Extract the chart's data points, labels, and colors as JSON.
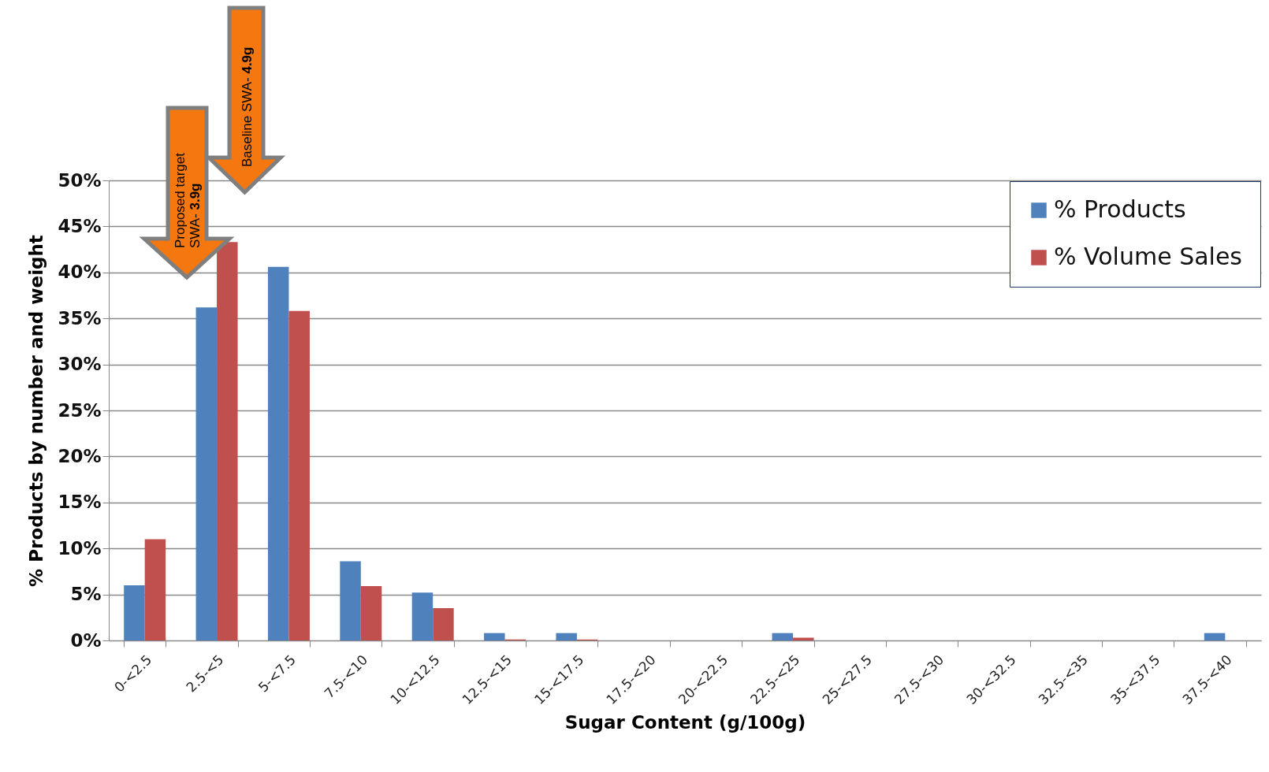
{
  "chart_data": {
    "type": "bar",
    "xlabel": "Sugar Content (g/100g)",
    "ylabel": "% Products by number and weight",
    "categories": [
      "0-<2.5",
      "2.5-<5",
      "5-<7.5",
      "7.5-<10",
      "10-<12.5",
      "12.5-<15",
      "15-<17.5",
      "17.5-<20",
      "20-<22.5",
      "22.5-<25",
      "25-<27.5",
      "27.5-<30",
      "30-<32.5",
      "32.5-<35",
      "35-<37.5",
      "37.5-<40"
    ],
    "series": [
      {
        "name": "% Products",
        "color": "#4f81bd",
        "values": [
          6.0,
          36.2,
          40.6,
          8.6,
          5.2,
          0.8,
          0.8,
          0,
          0,
          0.8,
          0,
          0,
          0,
          0,
          0,
          0.8
        ]
      },
      {
        "name": "% Volume Sales",
        "color": "#c0504d",
        "values": [
          11.0,
          43.3,
          35.8,
          5.9,
          3.5,
          0.1,
          0.1,
          0,
          0,
          0.3,
          0,
          0,
          0,
          0,
          0,
          0
        ]
      }
    ],
    "ylim": [
      0,
      50
    ],
    "yticks": [
      {
        "value": 0,
        "label": "0%"
      },
      {
        "value": 5,
        "label": "5%"
      },
      {
        "value": 10,
        "label": "10%"
      },
      {
        "value": 15,
        "label": "15%"
      },
      {
        "value": 20,
        "label": "20%"
      },
      {
        "value": 25,
        "label": "25%"
      },
      {
        "value": 30,
        "label": "30%"
      },
      {
        "value": 35,
        "label": "35%"
      },
      {
        "value": 40,
        "label": "40%"
      },
      {
        "value": 45,
        "label": "45%"
      },
      {
        "value": 50,
        "label": "50%"
      }
    ],
    "grid": "y",
    "legend": "top right",
    "annotations": [
      "Proposed target\nSWA- 3.9g",
      "Baseline SWA- 4.9g"
    ]
  }
}
